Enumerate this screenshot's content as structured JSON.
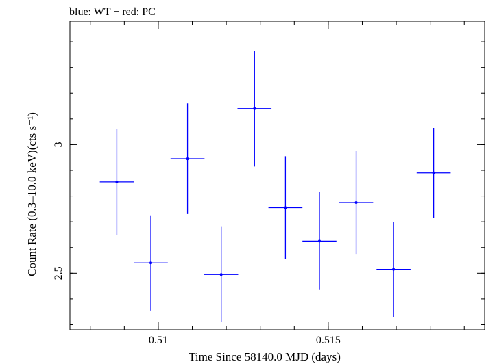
{
  "chart_data": {
    "type": "scatter",
    "title": "blue: WT − red: PC",
    "xlabel": "Time Since 58140.0 MJD (days)",
    "ylabel": "Count Rate (0.3–10.0 keV)(cts s⁻¹)",
    "xlim": [
      0.5074,
      0.5196
    ],
    "ylim": [
      2.28,
      3.48
    ],
    "x_ticks": [
      0.51,
      0.515
    ],
    "x_tick_labels": [
      "0.51",
      "0.515"
    ],
    "y_ticks": [
      2.5,
      3
    ],
    "y_tick_labels": [
      "2.5",
      "3"
    ],
    "x_minor_step": 0.001,
    "y_minor_step": 0.1,
    "grid": false,
    "series": [
      {
        "color": "#0000ff",
        "points": [
          {
            "x": 0.50878,
            "xerr": 0.0005,
            "y": 2.855,
            "yerr": 0.205
          },
          {
            "x": 0.50978,
            "xerr": 0.0005,
            "y": 2.54,
            "yerr": 0.185
          },
          {
            "x": 0.51086,
            "xerr": 0.0005,
            "y": 2.945,
            "yerr": 0.215
          },
          {
            "x": 0.51185,
            "xerr": 0.0005,
            "y": 2.495,
            "yerr": 0.185
          },
          {
            "x": 0.51283,
            "xerr": 0.0005,
            "y": 3.14,
            "yerr": 0.225
          },
          {
            "x": 0.51374,
            "xerr": 0.0005,
            "y": 2.755,
            "yerr": 0.2
          },
          {
            "x": 0.51474,
            "xerr": 0.0005,
            "y": 2.625,
            "yerr": 0.19
          },
          {
            "x": 0.51582,
            "xerr": 0.0005,
            "y": 2.775,
            "yerr": 0.2
          },
          {
            "x": 0.51692,
            "xerr": 0.0005,
            "y": 2.515,
            "yerr": 0.185
          },
          {
            "x": 0.5181,
            "xerr": 0.0005,
            "y": 2.89,
            "yerr": 0.175
          }
        ]
      }
    ]
  }
}
